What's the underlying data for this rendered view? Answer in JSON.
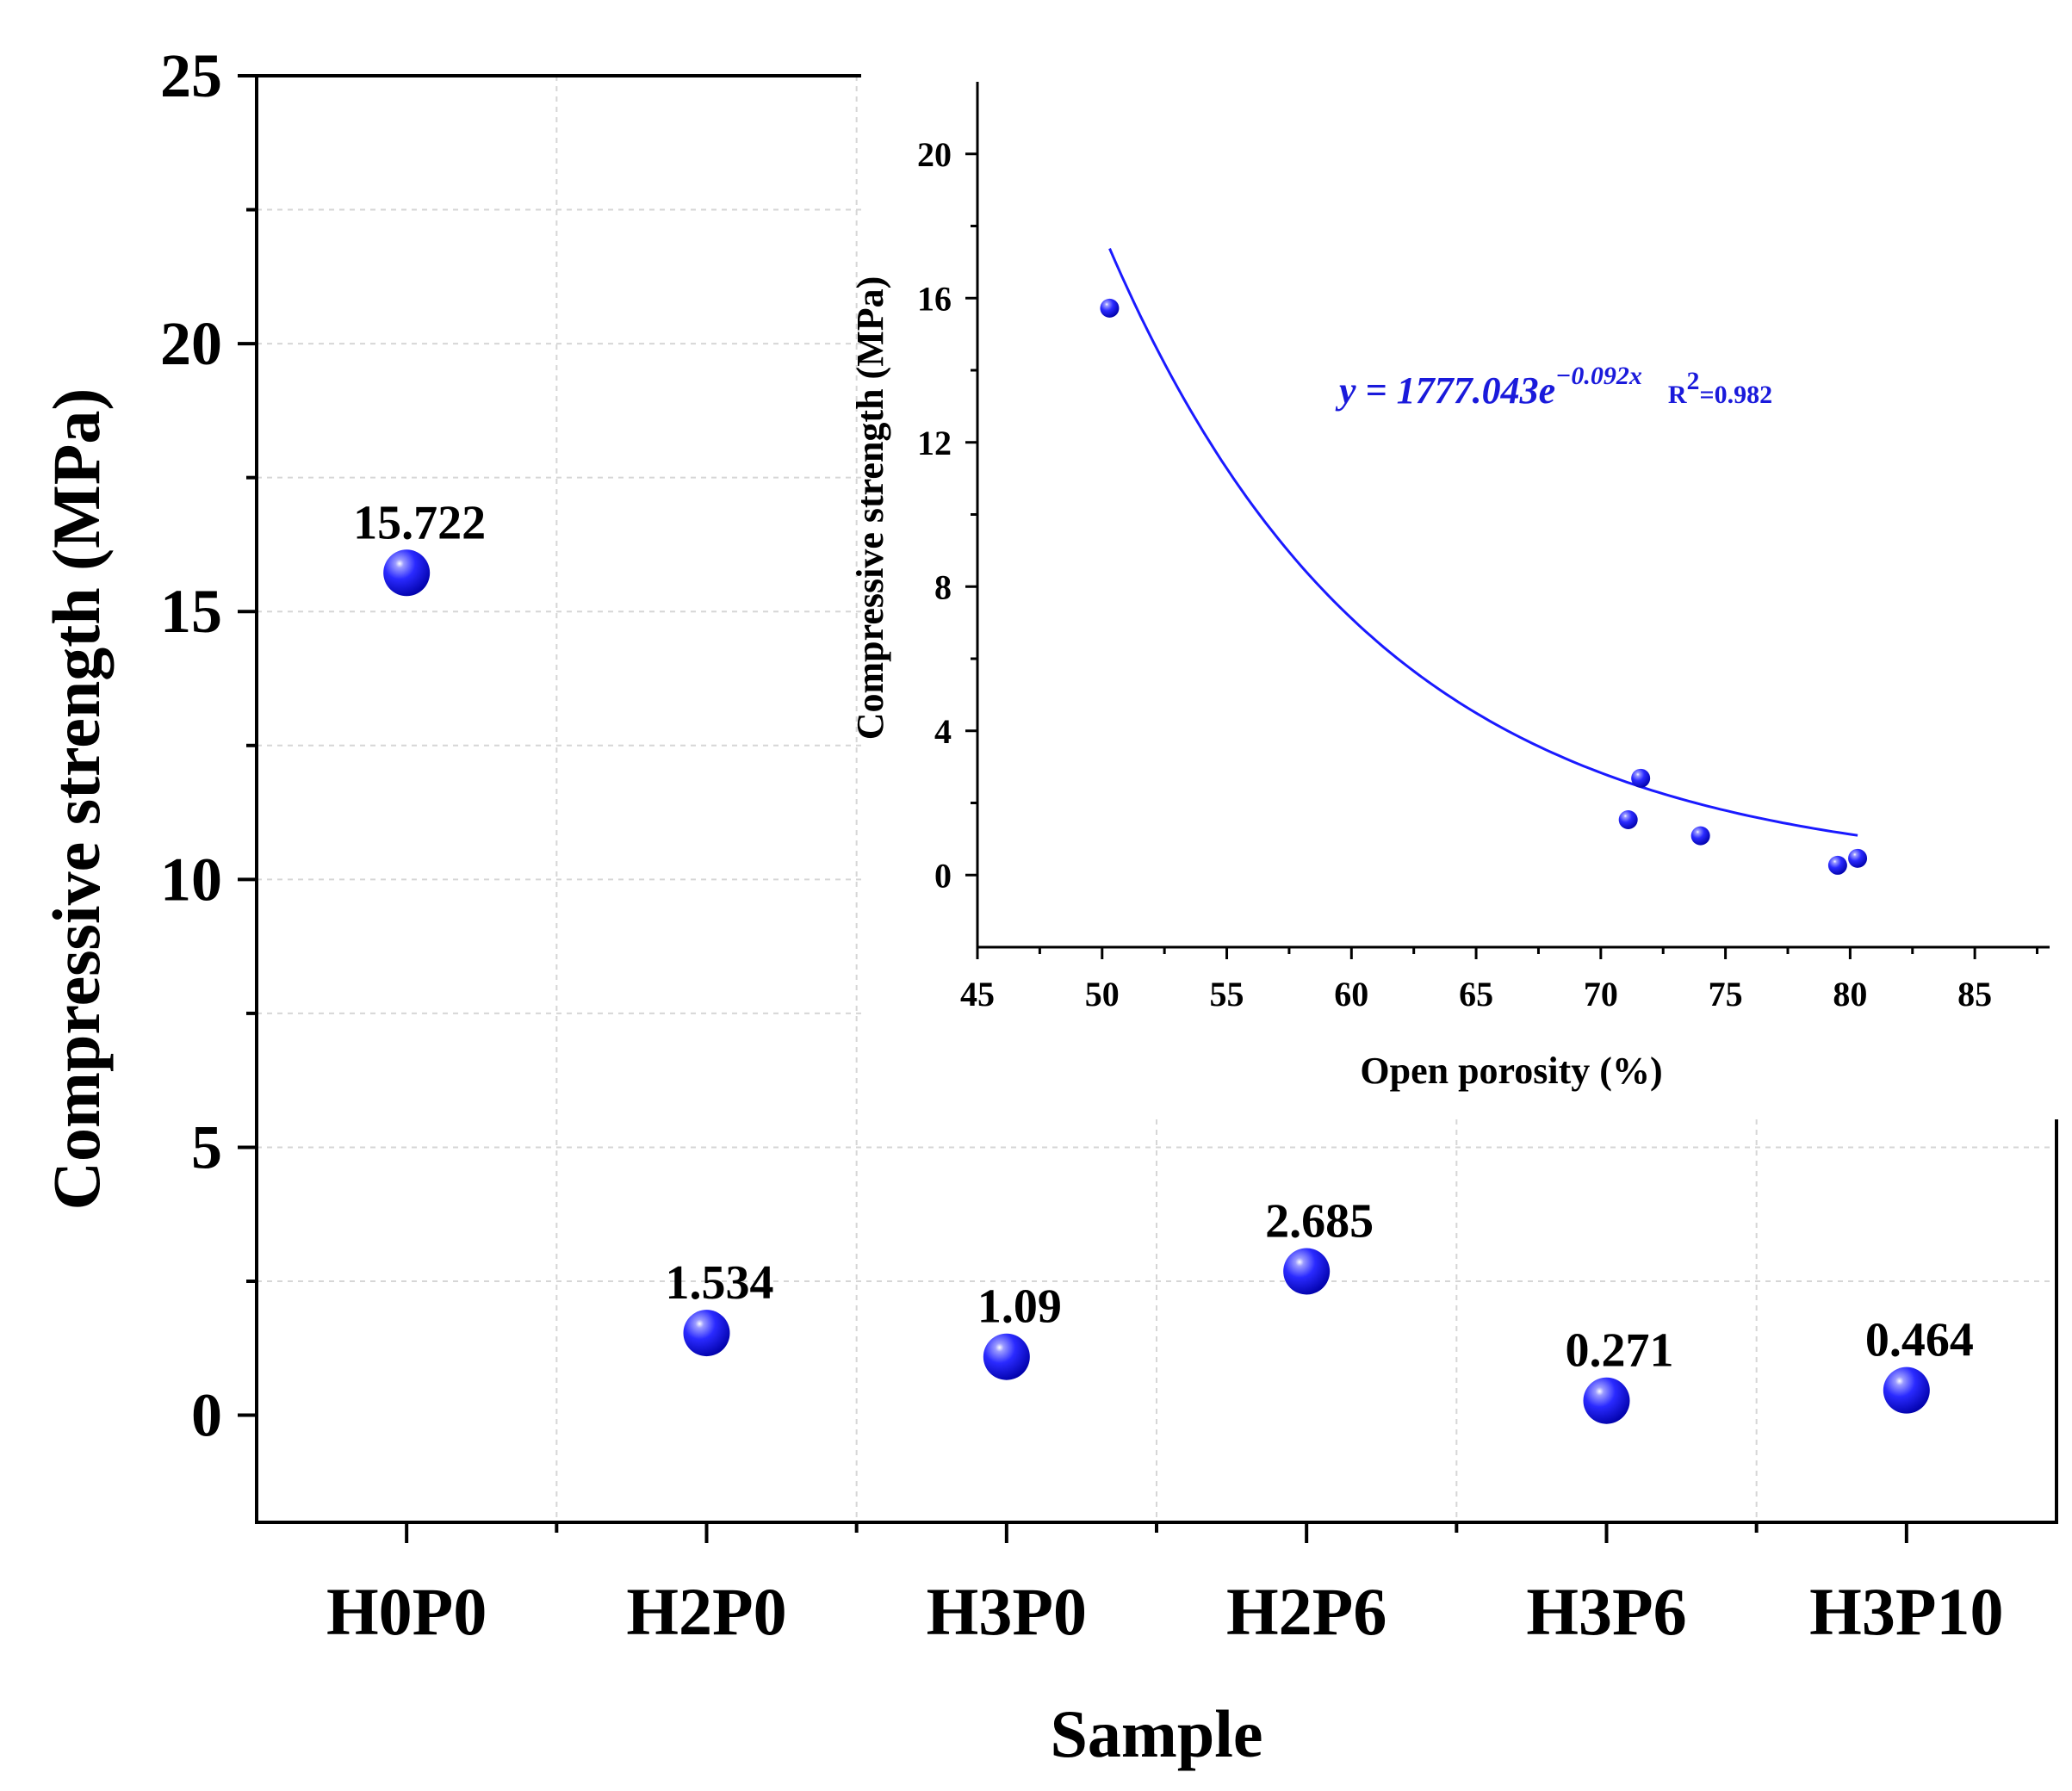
{
  "chart_data": [
    {
      "type": "scatter",
      "xlabel": "Sample",
      "ylabel": "Compressive strength (MPa)",
      "categories": [
        "H0P0",
        "H2P0",
        "H3P0",
        "H2P6",
        "H3P6",
        "H3P10"
      ],
      "values": [
        15.722,
        1.534,
        1.09,
        2.685,
        0.271,
        0.464
      ],
      "data_labels": [
        "15.722",
        "1.534",
        "1.09",
        "2.685",
        "0.271",
        "0.464"
      ],
      "ylim": [
        -2,
        25
      ],
      "yticks": [
        0,
        5,
        10,
        15,
        20,
        25
      ],
      "grid": true,
      "marker_color": "#1a1aff"
    },
    {
      "type": "scatter",
      "role": "inset",
      "xlabel": "Open porosity (%)",
      "ylabel": "Compressive strength (MPa)",
      "xlim": [
        45,
        88
      ],
      "ylim": [
        -2,
        22
      ],
      "xticks": [
        45,
        50,
        55,
        60,
        65,
        70,
        75,
        80,
        85
      ],
      "yticks": [
        0,
        4,
        8,
        12,
        16,
        20
      ],
      "points": [
        {
          "x": 50.3,
          "y": 15.722
        },
        {
          "x": 71.1,
          "y": 1.534
        },
        {
          "x": 71.6,
          "y": 2.685
        },
        {
          "x": 74.0,
          "y": 1.09
        },
        {
          "x": 79.5,
          "y": 0.271
        },
        {
          "x": 80.3,
          "y": 0.464
        }
      ],
      "fit": {
        "equation_prefix": "y = 1777.043e",
        "exponent": "−0.092x",
        "r2_label": "R",
        "r2_sup": "2",
        "r2_value": "=0.982",
        "a": 1777.043,
        "b": -0.092,
        "x_range": [
          50.3,
          80.3
        ],
        "color": "#1a1aff"
      }
    }
  ]
}
